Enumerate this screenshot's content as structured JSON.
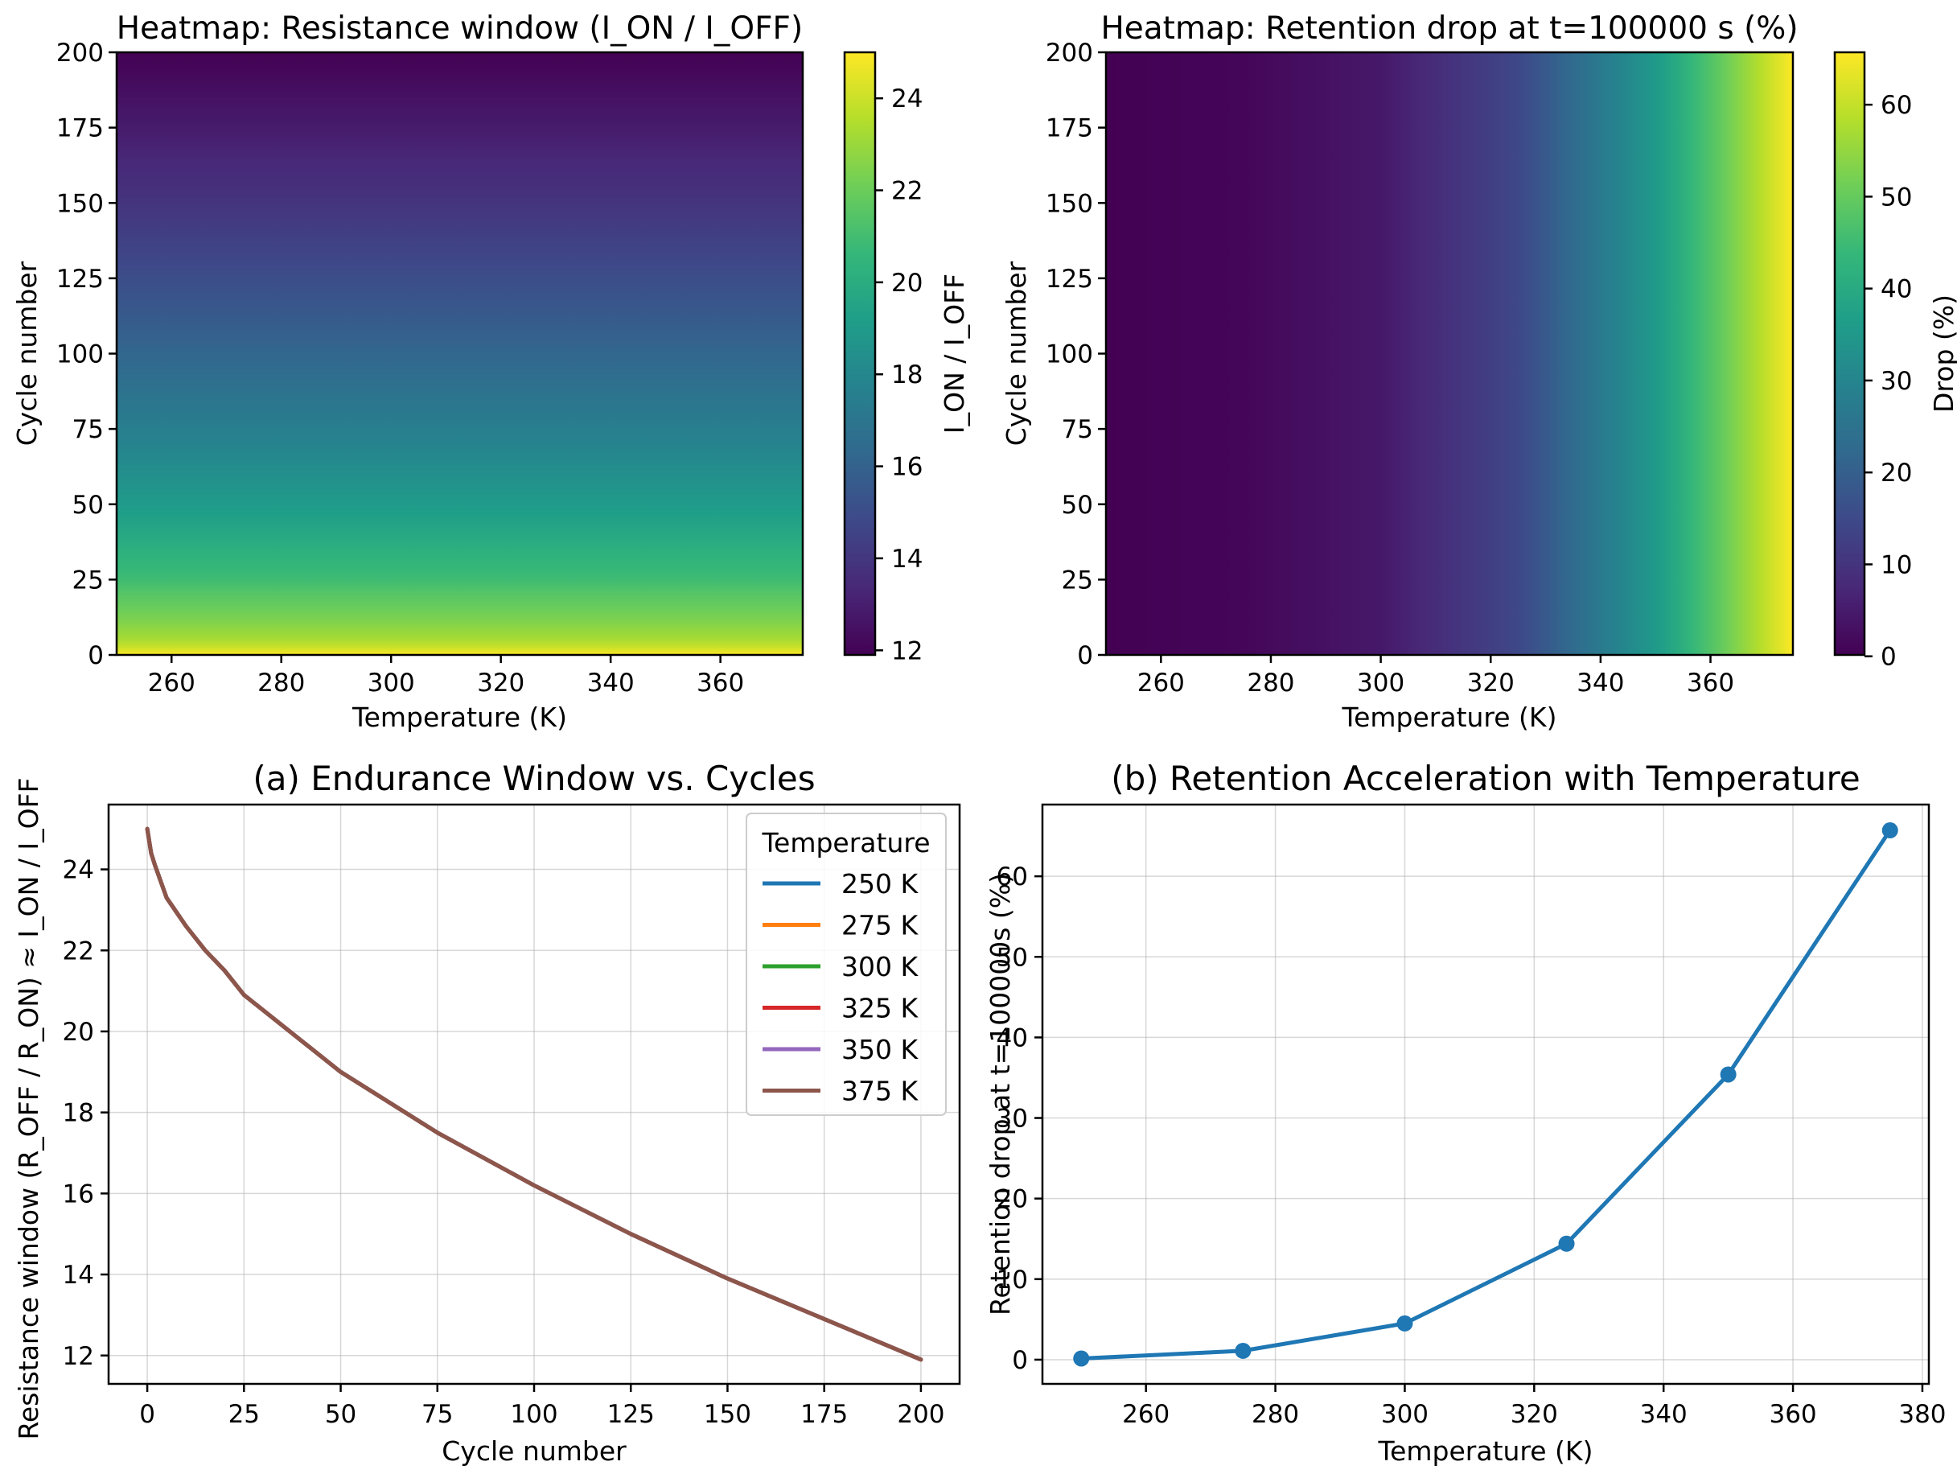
{
  "colors": {
    "viridis": [
      "#440154",
      "#482878",
      "#3e4989",
      "#31688e",
      "#26828e",
      "#1f9e89",
      "#35b779",
      "#6ece58",
      "#b5de2b",
      "#fde725"
    ],
    "series": [
      "#1f77b4",
      "#ff7f0e",
      "#2ca02c",
      "#d62728",
      "#9467bd",
      "#8c564b"
    ]
  },
  "chart_data": [
    {
      "type": "heatmap",
      "title": "Heatmap: Resistance window (I_ON / I_OFF)",
      "xlabel": "Temperature (K)",
      "ylabel": "Cycle number",
      "xlim": [
        250,
        375
      ],
      "ylim": [
        0,
        200
      ],
      "xticks": [
        "260",
        "280",
        "300",
        "320",
        "340",
        "360"
      ],
      "yticks": [
        "0",
        "25",
        "50",
        "75",
        "100",
        "125",
        "150",
        "175",
        "200"
      ],
      "colorbar": {
        "label": "I_ON / I_OFF",
        "range": [
          11.9,
          25.0
        ],
        "ticks": [
          "12",
          "14",
          "16",
          "18",
          "20",
          "22",
          "24"
        ]
      },
      "varies_along": "y",
      "profile": {
        "cycles": [
          0,
          1,
          2,
          5,
          10,
          15,
          20,
          25,
          50,
          75,
          100,
          125,
          150,
          175,
          200
        ],
        "values": [
          25.0,
          24.4,
          24.1,
          23.3,
          22.6,
          22.0,
          21.5,
          20.9,
          19.0,
          17.5,
          16.2,
          15.0,
          13.9,
          12.9,
          11.9
        ]
      }
    },
    {
      "type": "heatmap",
      "title": "Heatmap: Retention drop at t=100000 s (%)",
      "xlabel": "Temperature (K)",
      "ylabel": "Cycle number",
      "xlim": [
        250,
        375
      ],
      "ylim": [
        0,
        200
      ],
      "xticks": [
        "260",
        "280",
        "300",
        "320",
        "340",
        "360"
      ],
      "yticks": [
        "0",
        "25",
        "50",
        "75",
        "100",
        "125",
        "150",
        "175",
        "200"
      ],
      "colorbar": {
        "label": "Drop (%)",
        "range": [
          0.15,
          65.7
        ],
        "ticks": [
          "0",
          "10",
          "20",
          "30",
          "40",
          "50",
          "60"
        ]
      },
      "varies_along": "x",
      "profile": {
        "temperature_k": [
          250,
          275,
          300,
          325,
          350,
          375
        ],
        "values": [
          0.15,
          1.1,
          4.5,
          14.4,
          35.4,
          65.7
        ]
      }
    },
    {
      "type": "line",
      "title": "(a) Endurance Window vs. Cycles",
      "xlabel": "Cycle number",
      "ylabel": "Resistance window  (R_OFF / R_ON)  ≈  I_ON / I_OFF",
      "xlim": [
        -10,
        210
      ],
      "ylim": [
        11.3,
        25.6
      ],
      "xticks": [
        "0",
        "25",
        "50",
        "75",
        "100",
        "125",
        "150",
        "175",
        "200"
      ],
      "yticks": [
        "12",
        "14",
        "16",
        "18",
        "20",
        "22",
        "24"
      ],
      "grid": true,
      "legend": {
        "title": "Temperature",
        "placement": "upper right"
      },
      "x": [
        0,
        1,
        2,
        5,
        10,
        15,
        20,
        25,
        50,
        75,
        100,
        125,
        150,
        175,
        200
      ],
      "series": [
        {
          "name": "250 K",
          "values": [
            25.0,
            24.4,
            24.1,
            23.3,
            22.6,
            22.0,
            21.5,
            20.9,
            19.0,
            17.5,
            16.2,
            15.0,
            13.9,
            12.9,
            11.9
          ]
        },
        {
          "name": "275 K",
          "values": [
            25.0,
            24.4,
            24.1,
            23.3,
            22.6,
            22.0,
            21.5,
            20.9,
            19.0,
            17.5,
            16.2,
            15.0,
            13.9,
            12.9,
            11.9
          ]
        },
        {
          "name": "300 K",
          "values": [
            25.0,
            24.4,
            24.1,
            23.3,
            22.6,
            22.0,
            21.5,
            20.9,
            19.0,
            17.5,
            16.2,
            15.0,
            13.9,
            12.9,
            11.9
          ]
        },
        {
          "name": "325 K",
          "values": [
            25.0,
            24.4,
            24.1,
            23.3,
            22.6,
            22.0,
            21.5,
            20.9,
            19.0,
            17.5,
            16.2,
            15.0,
            13.9,
            12.9,
            11.9
          ]
        },
        {
          "name": "350 K",
          "values": [
            25.0,
            24.4,
            24.1,
            23.3,
            22.6,
            22.0,
            21.5,
            20.9,
            19.0,
            17.5,
            16.2,
            15.0,
            13.9,
            12.9,
            11.9
          ]
        },
        {
          "name": "375 K",
          "values": [
            25.0,
            24.4,
            24.1,
            23.3,
            22.6,
            22.0,
            21.5,
            20.9,
            19.0,
            17.5,
            16.2,
            15.0,
            13.9,
            12.9,
            11.9
          ]
        }
      ]
    },
    {
      "type": "line",
      "title": "(b) Retention Acceleration with Temperature",
      "xlabel": "Temperature (K)",
      "ylabel": "Retention drop at t=100000s  (%)",
      "xlim": [
        244,
        381
      ],
      "ylim": [
        -3.0,
        68.9
      ],
      "xticks": [
        "260",
        "280",
        "300",
        "320",
        "340",
        "360",
        "380"
      ],
      "yticks": [
        "0",
        "10",
        "20",
        "30",
        "40",
        "50",
        "60"
      ],
      "grid": true,
      "markers": true,
      "x": [
        250,
        275,
        300,
        325,
        350,
        375
      ],
      "values": [
        0.15,
        1.1,
        4.5,
        14.4,
        35.4,
        65.7
      ]
    }
  ]
}
